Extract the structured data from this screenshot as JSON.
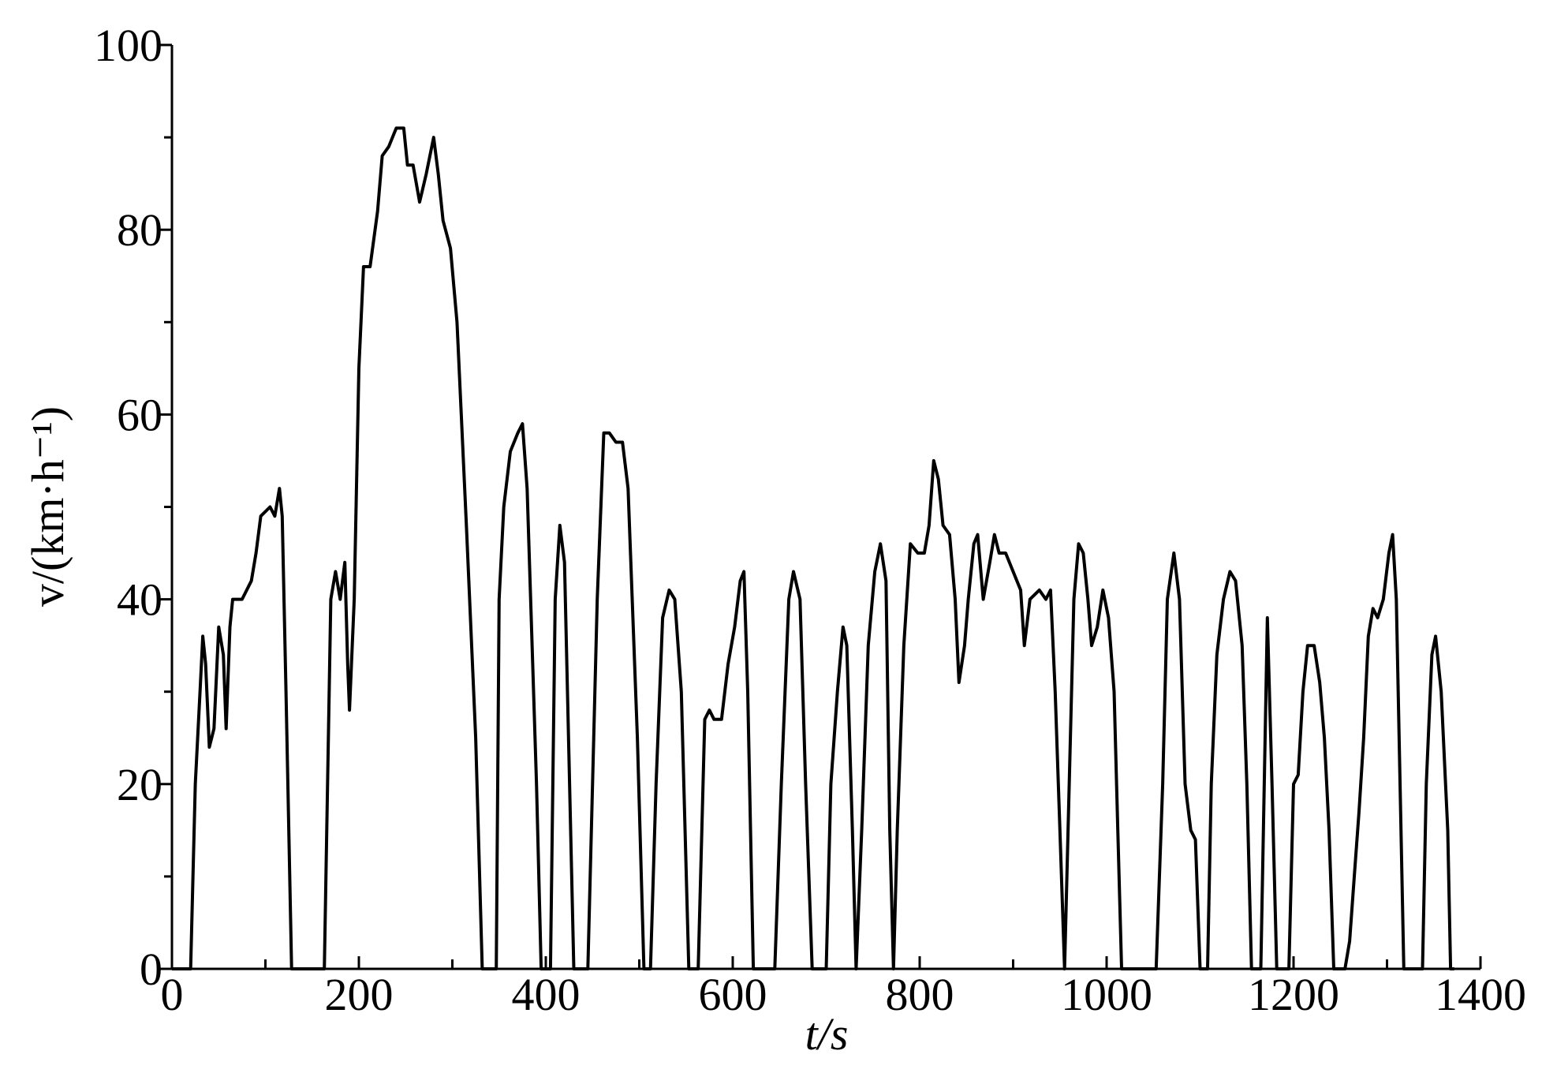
{
  "chart_data": {
    "type": "line",
    "xlabel": "t/s",
    "ylabel": "v/(km·h⁻¹)",
    "xlim": [
      0,
      1400
    ],
    "ylim": [
      0,
      100
    ],
    "xticks": [
      0,
      200,
      400,
      600,
      800,
      1000,
      1200,
      1400
    ],
    "yticks": [
      0,
      20,
      40,
      60,
      80,
      100
    ],
    "xticks_minor": [
      100,
      300,
      500,
      700,
      900,
      1100,
      1300
    ],
    "yticks_minor": [
      10,
      30,
      50,
      70,
      90
    ],
    "color": "#000000",
    "x": [
      0,
      20,
      25,
      30,
      33,
      36,
      40,
      45,
      50,
      55,
      58,
      62,
      65,
      75,
      85,
      90,
      95,
      105,
      110,
      115,
      118,
      122,
      128,
      163,
      170,
      175,
      180,
      185,
      188,
      190,
      195,
      200,
      205,
      212,
      220,
      225,
      232,
      240,
      248,
      252,
      258,
      265,
      272,
      280,
      285,
      290,
      298,
      305,
      315,
      325,
      332,
      347,
      350,
      355,
      362,
      370,
      375,
      380,
      390,
      395,
      405,
      410,
      415,
      420,
      430,
      445,
      455,
      462,
      468,
      475,
      482,
      488,
      498,
      505,
      512,
      518,
      525,
      532,
      538,
      545,
      553,
      563,
      570,
      575,
      580,
      588,
      595,
      602,
      608,
      612,
      616,
      622,
      645,
      652,
      660,
      665,
      672,
      678,
      685,
      700,
      705,
      712,
      718,
      722,
      728,
      732,
      738,
      745,
      752,
      758,
      764,
      768,
      772,
      776,
      783,
      790,
      798,
      805,
      810,
      815,
      820,
      825,
      832,
      838,
      842,
      848,
      852,
      858,
      862,
      868,
      875,
      880,
      885,
      892,
      900,
      908,
      912,
      918,
      928,
      935,
      940,
      945,
      950,
      955,
      960,
      965,
      970,
      975,
      980,
      984,
      990,
      996,
      1002,
      1008,
      1012,
      1016,
      1053,
      1060,
      1065,
      1072,
      1078,
      1084,
      1090,
      1095,
      1100,
      1108,
      1112,
      1118,
      1125,
      1132,
      1138,
      1145,
      1150,
      1155,
      1165,
      1172,
      1177,
      1182,
      1195,
      1200,
      1205,
      1210,
      1215,
      1222,
      1228,
      1233,
      1238,
      1243,
      1255,
      1260,
      1265,
      1270,
      1275,
      1280,
      1285,
      1290,
      1296,
      1302,
      1306,
      1310,
      1318,
      1338,
      1342,
      1348,
      1352,
      1358,
      1365,
      1368,
      1372
    ],
    "values": [
      0,
      0,
      20,
      30,
      36,
      33,
      24,
      26,
      37,
      34,
      26,
      37,
      40,
      40,
      42,
      45,
      49,
      50,
      49,
      52,
      49,
      30,
      0,
      0,
      40,
      43,
      40,
      44,
      33,
      28,
      40,
      65,
      76,
      76,
      82,
      88,
      89,
      91,
      91,
      87,
      87,
      83,
      86,
      90,
      86,
      81,
      78,
      70,
      48,
      25,
      0,
      0,
      40,
      50,
      56,
      58,
      59,
      52,
      20,
      0,
      0,
      40,
      48,
      44,
      0,
      0,
      40,
      58,
      58,
      57,
      57,
      52,
      25,
      0,
      0,
      20,
      38,
      41,
      40,
      30,
      0,
      0,
      27,
      28,
      27,
      27,
      33,
      37,
      42,
      43,
      30,
      0,
      0,
      20,
      40,
      43,
      40,
      20,
      0,
      0,
      20,
      30,
      37,
      35,
      15,
      0,
      15,
      35,
      43,
      46,
      42,
      15,
      0,
      15,
      35,
      46,
      45,
      45,
      48,
      55,
      53,
      48,
      47,
      40,
      31,
      35,
      40,
      46,
      47,
      40,
      44,
      47,
      45,
      45,
      43,
      41,
      35,
      40,
      41,
      40,
      41,
      30,
      15,
      0,
      20,
      40,
      46,
      45,
      40,
      35,
      37,
      41,
      38,
      30,
      15,
      0,
      0,
      20,
      40,
      45,
      40,
      20,
      15,
      14,
      0,
      0,
      20,
      34,
      40,
      43,
      42,
      35,
      20,
      0,
      0,
      38,
      20,
      0,
      0,
      20,
      21,
      30,
      35,
      35,
      31,
      25,
      15,
      0,
      0,
      3,
      10,
      17,
      25,
      36,
      39,
      38,
      40,
      45,
      47,
      40,
      0,
      0,
      20,
      34,
      36,
      30,
      15,
      0,
      0
    ]
  }
}
